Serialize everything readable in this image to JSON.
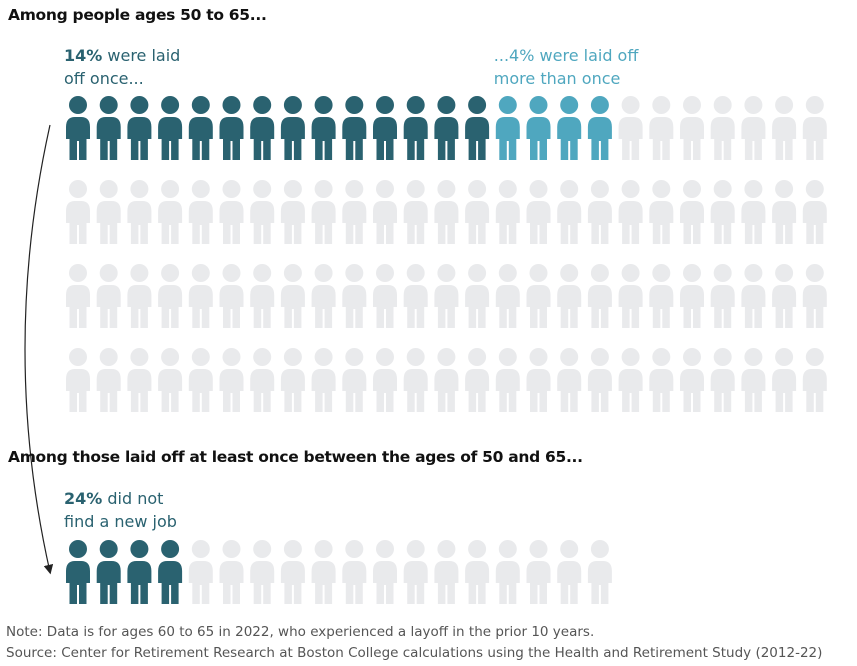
{
  "chart_data": [
    {
      "type": "waffle",
      "title": "Among people ages 50 to 65...",
      "icons": 100,
      "empty_color": "#e9eaec",
      "series": [
        {
          "name": "were laid off once...",
          "color": "#2a6270",
          "values": [
            14
          ],
          "value_labels": [
            "14%"
          ]
        },
        {
          "name": "were laid off more than once",
          "color": "#4fa7bf",
          "values": [
            4
          ],
          "value_labels": [
            "...4%"
          ]
        }
      ]
    },
    {
      "type": "waffle",
      "title": "Among those laid off at least once between the ages of 50 and 65...",
      "icons": 18,
      "empty_color": "#e9eaec",
      "series": [
        {
          "name": "did not find a new job",
          "color": "#2a6270",
          "values": [
            24
          ],
          "value_labels": [
            "24%"
          ]
        }
      ]
    }
  ],
  "note": "Note: Data is for ages 60 to 65 in 2022, who experienced a layoff in the prior 10 years.",
  "source": "Source: Center for Retirement Research at Boston College calculations using the Health and Retirement Study (2012-22)"
}
